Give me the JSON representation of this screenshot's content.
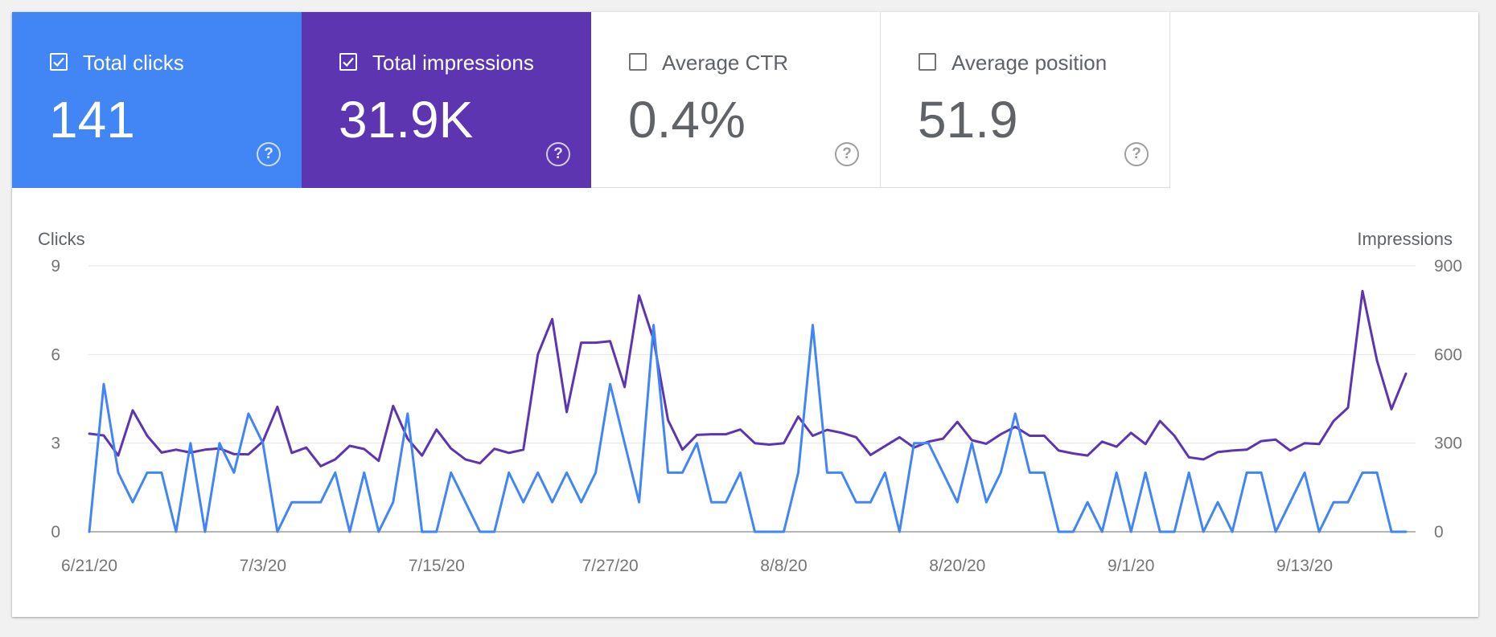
{
  "metrics": [
    {
      "label": "Total clicks",
      "value": "141",
      "checked": true,
      "color": "#4285f4"
    },
    {
      "label": "Total impressions",
      "value": "31.9K",
      "checked": true,
      "color": "#5e35b1"
    },
    {
      "label": "Average CTR",
      "value": "0.4%",
      "checked": false,
      "color": "#ffffff"
    },
    {
      "label": "Average position",
      "value": "51.9",
      "checked": false,
      "color": "#ffffff"
    }
  ],
  "chart_data": {
    "type": "line",
    "left_axis_title": "Clicks",
    "right_axis_title": "Impressions",
    "y_left_ticks": [
      "9",
      "6",
      "3",
      "0"
    ],
    "y_right_ticks": [
      "900",
      "600",
      "300",
      "0"
    ],
    "y_left_lim": [
      0,
      9
    ],
    "y_right_lim": [
      0,
      900
    ],
    "x_tick_labels": [
      "6/21/20",
      "7/3/20",
      "7/15/20",
      "7/27/20",
      "8/8/20",
      "8/20/20",
      "9/1/20",
      "9/13/20"
    ],
    "x_tick_index": [
      0,
      12,
      24,
      36,
      48,
      60,
      72,
      84
    ],
    "grid": true,
    "series": [
      {
        "name": "Clicks",
        "axis": "left",
        "color": "#4285f4",
        "values": [
          0,
          5,
          2,
          1,
          2,
          2,
          0,
          3,
          0,
          3,
          2,
          4,
          3,
          0,
          1,
          1,
          1,
          2,
          0,
          2,
          0,
          1,
          4,
          0,
          0,
          2,
          1,
          0,
          0,
          2,
          1,
          2,
          1,
          2,
          1,
          2,
          5,
          3,
          1,
          7,
          2,
          2,
          3,
          1,
          1,
          2,
          0,
          0,
          0,
          2,
          7,
          2,
          2,
          1,
          1,
          2,
          0,
          3,
          3,
          2,
          1,
          3,
          1,
          2,
          4,
          2,
          2,
          0,
          0,
          1,
          0,
          2,
          0,
          2,
          0,
          0,
          2,
          0,
          1,
          0,
          2,
          2,
          0,
          1,
          2,
          0,
          1,
          1,
          2,
          2,
          0,
          0
        ]
      },
      {
        "name": "Impressions",
        "axis": "right",
        "color": "#5e35b1",
        "values": [
          332,
          326,
          258,
          411,
          325,
          268,
          278,
          268,
          278,
          282,
          263,
          262,
          306,
          423,
          267,
          285,
          222,
          245,
          291,
          280,
          240,
          426,
          315,
          258,
          346,
          282,
          245,
          232,
          281,
          267,
          278,
          600,
          720,
          405,
          640,
          640,
          645,
          490,
          800,
          650,
          378,
          278,
          328,
          330,
          330,
          346,
          300,
          295,
          300,
          390,
          325,
          345,
          335,
          320,
          260,
          290,
          320,
          285,
          305,
          315,
          372,
          310,
          298,
          330,
          355,
          325,
          325,
          275,
          265,
          258,
          305,
          288,
          335,
          297,
          375,
          325,
          252,
          245,
          270,
          275,
          278,
          307,
          312,
          275,
          300,
          297,
          375,
          420,
          815,
          580,
          415,
          535
        ]
      }
    ]
  }
}
